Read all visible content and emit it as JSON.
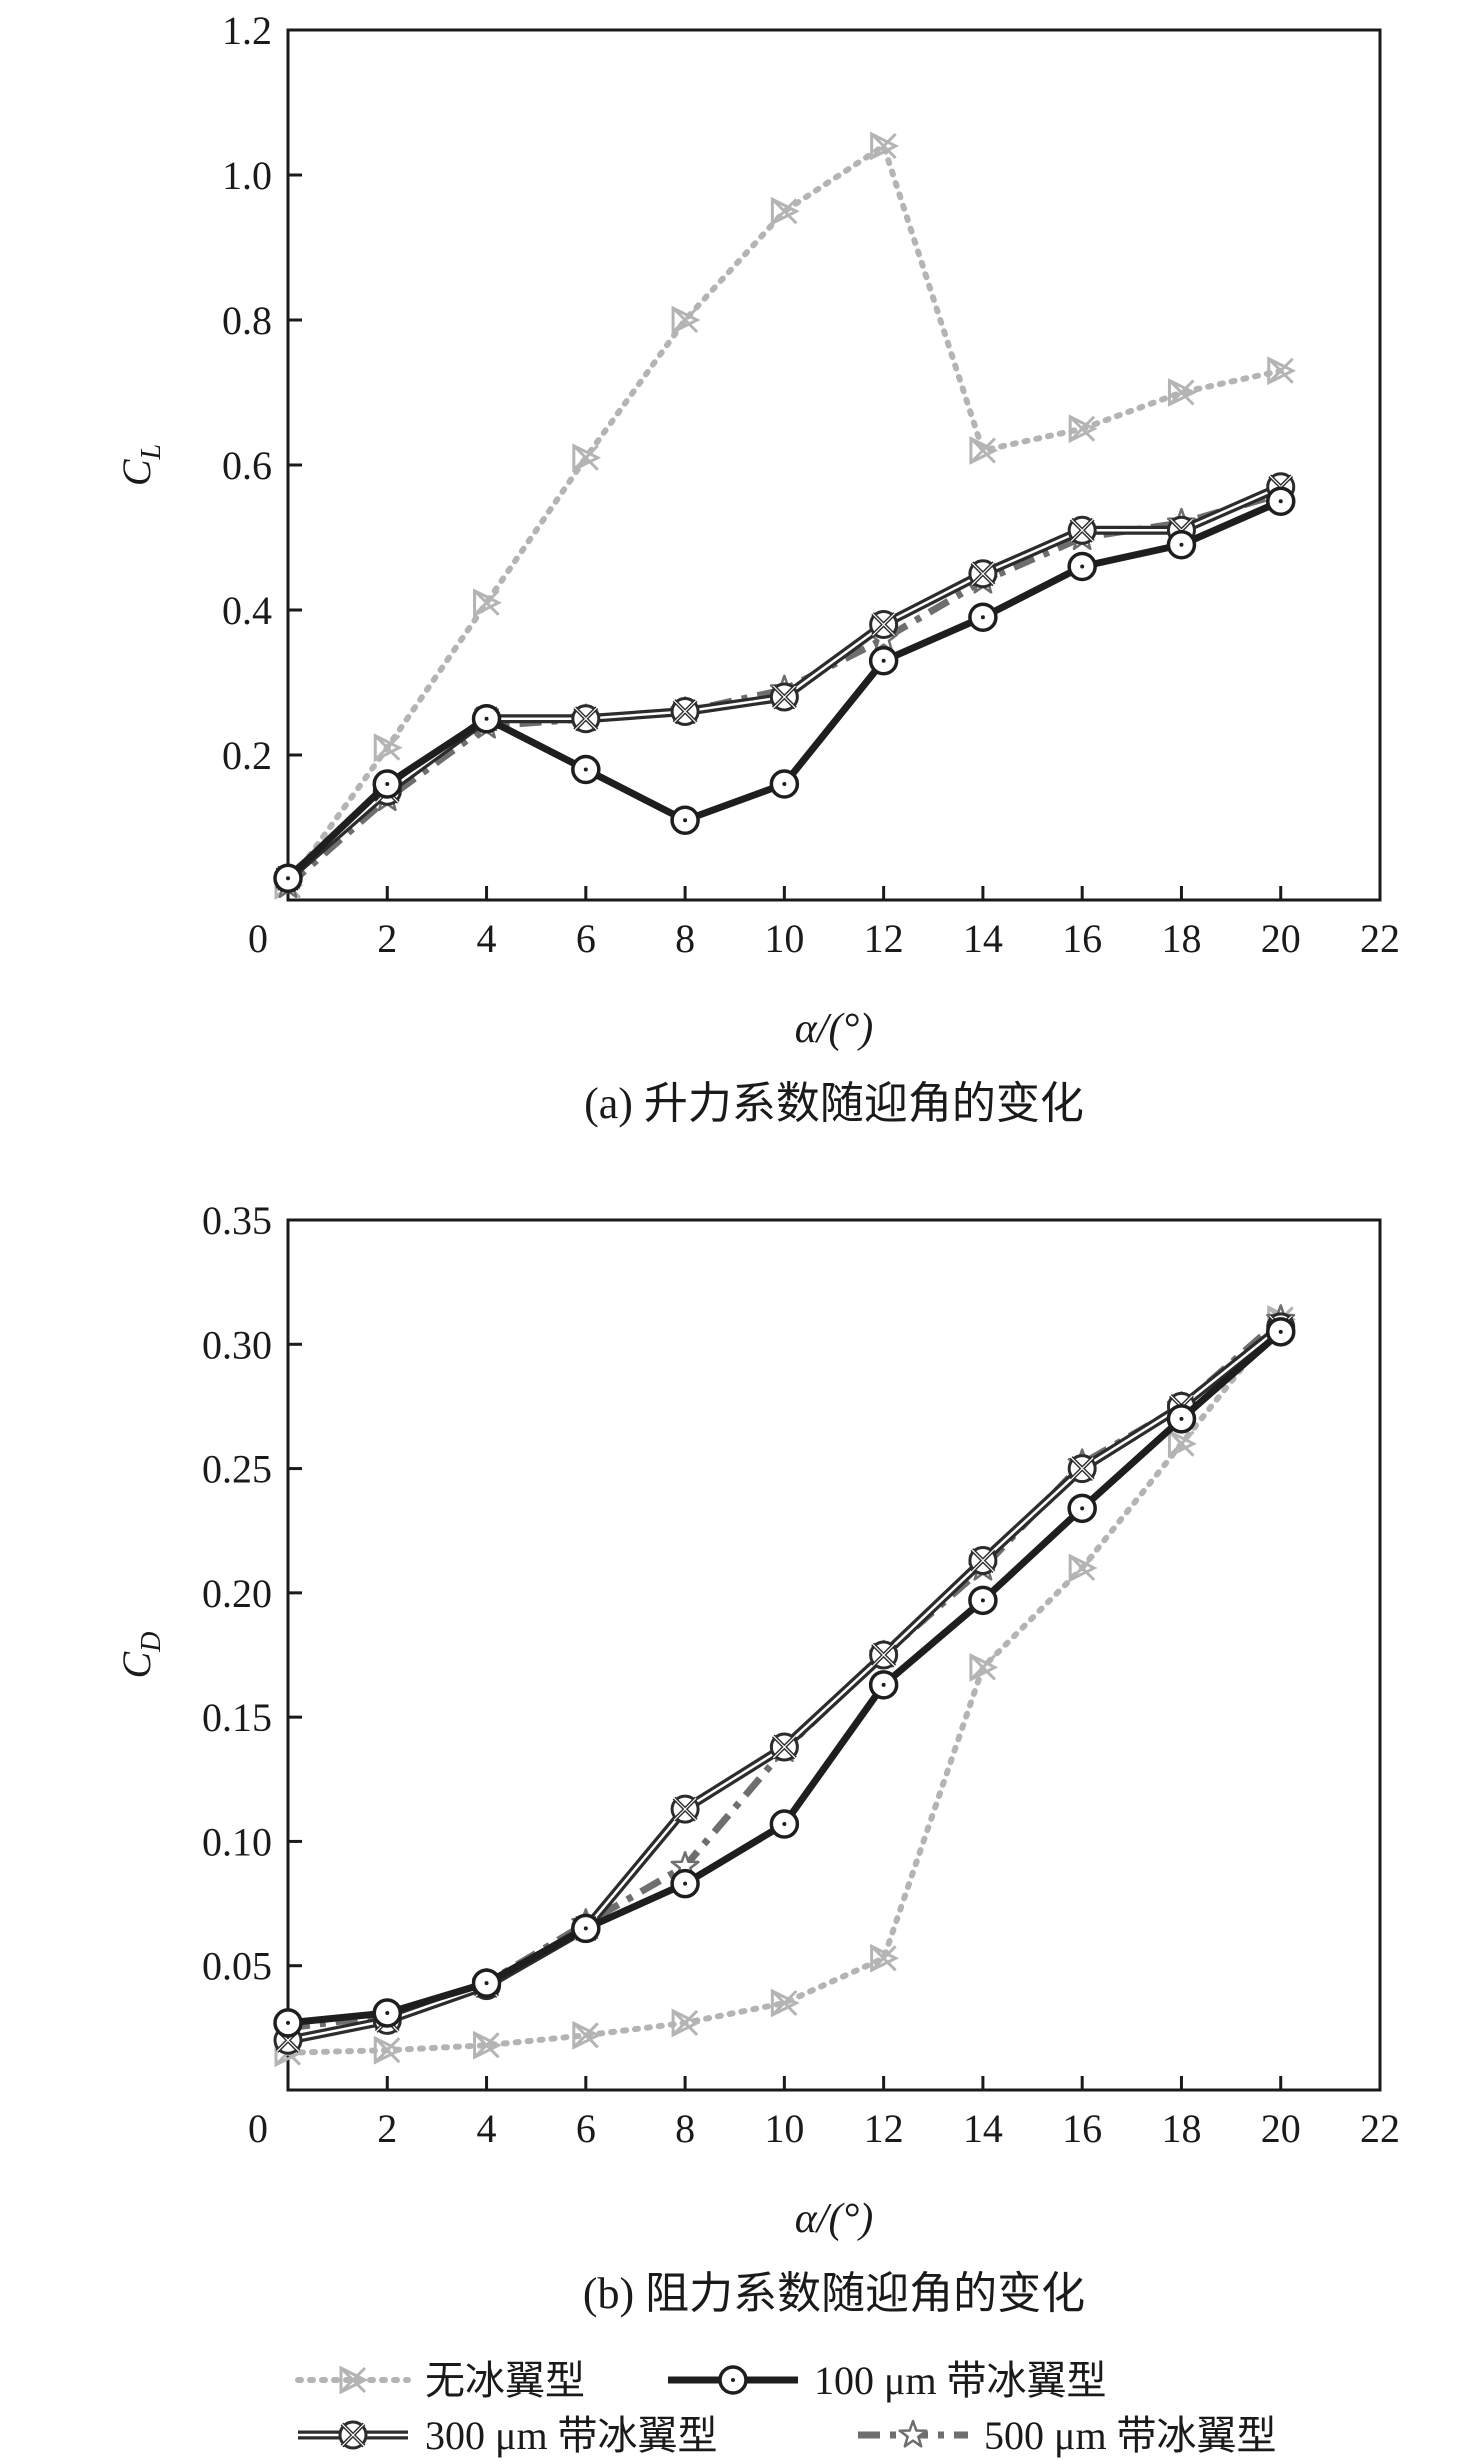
{
  "chart_data": [
    {
      "type": "line",
      "caption": "(a) 升力系数随迎角的变化",
      "xlabel": "α/(°)",
      "ylabel": "C_L",
      "ylabel_main": "C",
      "ylabel_sub": "L",
      "xlim": [
        0,
        22
      ],
      "ylim": [
        0,
        1.2
      ],
      "xticks": [
        "0",
        "2",
        "4",
        "6",
        "8",
        "10",
        "12",
        "14",
        "16",
        "18",
        "20",
        "22"
      ],
      "yticks": [
        "0.2",
        "0.4",
        "0.6",
        "0.8",
        "1.0",
        "1.2"
      ],
      "x": [
        0,
        2,
        4,
        6,
        8,
        10,
        12,
        14,
        16,
        18,
        20
      ],
      "series": [
        {
          "name": "无冰翼型",
          "values": [
            0.02,
            0.21,
            0.41,
            0.61,
            0.8,
            0.95,
            1.04,
            0.62,
            0.65,
            0.7,
            0.73
          ]
        },
        {
          "name": "100 μm 带冰翼型",
          "values": [
            0.03,
            0.16,
            0.25,
            0.18,
            0.11,
            0.16,
            0.33,
            0.39,
            0.46,
            0.49,
            0.55
          ]
        },
        {
          "name": "300 μm 带冰翼型",
          "values": [
            0.03,
            0.15,
            0.25,
            0.25,
            0.26,
            0.28,
            0.38,
            0.45,
            0.51,
            0.51,
            0.57
          ]
        },
        {
          "name": "500 μm 带冰翼型",
          "values": [
            0.02,
            0.14,
            0.24,
            0.25,
            0.26,
            0.29,
            0.36,
            0.44,
            0.5,
            0.52,
            0.56
          ]
        }
      ]
    },
    {
      "type": "line",
      "caption": "(b) 阻力系数随迎角的变化",
      "xlabel": "α/(°)",
      "ylabel": "C_D",
      "ylabel_main": "C",
      "ylabel_sub": "D",
      "xlim": [
        0,
        22
      ],
      "ylim": [
        0,
        0.35
      ],
      "xticks": [
        "0",
        "2",
        "4",
        "6",
        "8",
        "10",
        "12",
        "14",
        "16",
        "18",
        "20",
        "22"
      ],
      "yticks": [
        "0.05",
        "0.10",
        "0.15",
        "0.20",
        "0.25",
        "0.30",
        "0.35"
      ],
      "x": [
        0,
        2,
        4,
        6,
        8,
        10,
        12,
        14,
        16,
        18,
        20
      ],
      "series": [
        {
          "name": "无冰翼型",
          "values": [
            0.015,
            0.016,
            0.018,
            0.022,
            0.027,
            0.035,
            0.053,
            0.17,
            0.21,
            0.26,
            0.31
          ]
        },
        {
          "name": "100 μm 带冰翼型",
          "values": [
            0.027,
            0.031,
            0.043,
            0.065,
            0.083,
            0.107,
            0.163,
            0.197,
            0.234,
            0.27,
            0.305
          ]
        },
        {
          "name": "300 μm 带冰翼型",
          "values": [
            0.02,
            0.028,
            0.042,
            0.065,
            0.113,
            0.138,
            0.175,
            0.213,
            0.25,
            0.275,
            0.307
          ]
        },
        {
          "name": "500 μm 带冰翼型",
          "values": [
            0.025,
            0.03,
            0.043,
            0.067,
            0.09,
            0.137,
            0.175,
            0.21,
            0.252,
            0.275,
            0.31
          ]
        }
      ]
    }
  ],
  "legend": {
    "items": [
      "无冰翼型",
      "100 μm 带冰翼型",
      "300 μm 带冰翼型",
      "500 μm 带冰翼型"
    ],
    "colors": [
      "#b4b4b4",
      "#1e1e1e",
      "#2c2c2c",
      "#6e6e6e"
    ],
    "markers": [
      "x-triangle",
      "circle-dot",
      "x-circle",
      "star"
    ]
  }
}
